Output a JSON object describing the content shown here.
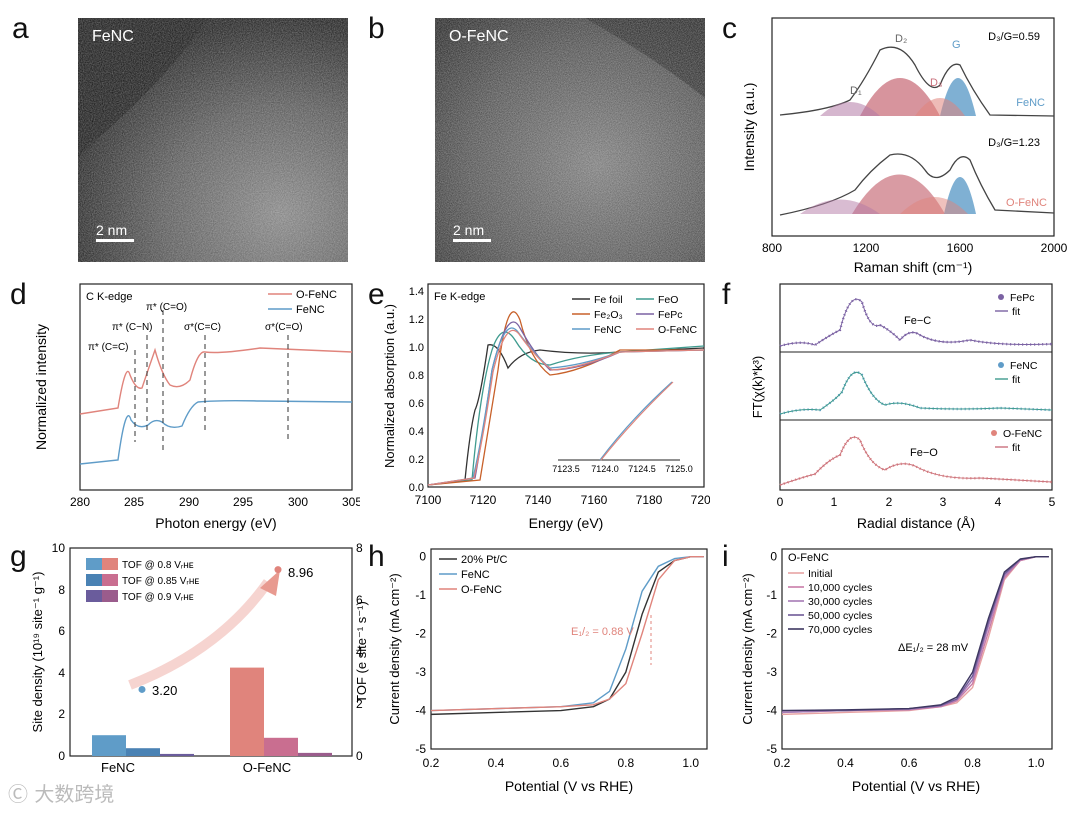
{
  "panels": {
    "a": {
      "letter": "a",
      "label": "FeNC",
      "scalebar": "2 nm"
    },
    "b": {
      "letter": "b",
      "label": "O-FeNC",
      "scalebar": "2 nm"
    },
    "c": {
      "letter": "c",
      "ylabel": "Intensity  (a.u.)",
      "xlabel": "Raman shift (cm⁻¹)",
      "xticks": [
        "800",
        "1200",
        "1600",
        "2000"
      ],
      "ratio_top": "D₃/G=0.59",
      "ratio_bottom": "D₃/G=1.23",
      "peak_labels": [
        "D₁",
        "D₂",
        "D₃",
        "G"
      ],
      "sample_top": "FeNC",
      "sample_bottom": "O-FeNC"
    },
    "d": {
      "letter": "d",
      "title": "C K-edge",
      "ylabel": "Normalized intensity",
      "xlabel": "Photon energy (eV)",
      "xticks": [
        "280",
        "285",
        "290",
        "295",
        "300",
        "305"
      ],
      "legend": [
        "O-FeNC",
        "FeNC"
      ],
      "annotations": [
        "π* (C=C)",
        "π* (C−N)",
        "π* (C=O)",
        "σ*(C=C)",
        "σ*(C=O)"
      ]
    },
    "e": {
      "letter": "e",
      "title": "Fe K-edge",
      "ylabel": "Normalized absorption (a.u.)",
      "xlabel": "Energy (eV)",
      "xticks": [
        "7100",
        "7120",
        "7140",
        "7160",
        "7180",
        "7200"
      ],
      "yticks": [
        "0.0",
        "0.2",
        "0.4",
        "0.6",
        "0.8",
        "1.0",
        "1.2",
        "1.4"
      ],
      "legend": [
        "Fe foil",
        "FeO",
        "Fe₂O₃",
        "FePc",
        "FeNC",
        "O-FeNC"
      ],
      "inset_xticks": [
        "7123.5",
        "7124.0",
        "7124.5",
        "7125.0"
      ]
    },
    "f": {
      "letter": "f",
      "ylabel": "FT(χ(k)*k³)",
      "xlabel": "Radial distance (Å)",
      "xticks": [
        "0",
        "1",
        "2",
        "3",
        "4",
        "5"
      ],
      "subplots": [
        {
          "sample": "FePc",
          "fit": "fit",
          "bond": "Fe−C"
        },
        {
          "sample": "FeNC",
          "fit": "fit",
          "bond": ""
        },
        {
          "sample": "O-FeNC",
          "fit": "fit",
          "bond": "Fe−O"
        }
      ]
    },
    "g": {
      "letter": "g",
      "ylabel": "Site density (10¹⁹ site⁻¹ g⁻¹)",
      "y2label": "TOF (e site⁻¹ s⁻¹)",
      "yticks": [
        "0",
        "2",
        "4",
        "6",
        "8",
        "10"
      ],
      "y2ticks": [
        "0",
        "2",
        "4",
        "6",
        "8"
      ],
      "legend": [
        "TOF @ 0.8 Vᵣʜᴇ",
        "TOF @ 0.85 Vᵣʜᴇ",
        "TOF @ 0.9 Vᵣʜᴇ"
      ],
      "point_labels": [
        "3.20",
        "8.96"
      ]
    },
    "h": {
      "letter": "h",
      "ylabel": "Current density (mA cm⁻²)",
      "xlabel": "Potential (V vs RHE)",
      "legend": [
        "20% Pt/C",
        "FeNC",
        "O-FeNC"
      ],
      "annotation": "E₁/₂ = 0.88 V"
    },
    "i": {
      "letter": "i",
      "ylabel": "Current density (mA cm⁻²)",
      "xlabel": "Potential (V vs RHE)",
      "title": "O-FeNC",
      "legend": [
        "Initial",
        "10,000 cycles",
        "30,000 cycles",
        "50,000 cycles",
        "70,000 cycles"
      ],
      "annotation": "ΔE₁/₂ = 28 mV"
    }
  },
  "lsv_xticks": [
    "0.2",
    "0.4",
    "0.6",
    "0.8",
    "1.0"
  ],
  "lsv_yticks": [
    "0",
    "-1",
    "-2",
    "-3",
    "-4",
    "-5"
  ],
  "watermark": "大数跨境",
  "colors": {
    "red": "#e0847c",
    "blue": "#5f9cc8",
    "purple": "#7b62a3",
    "dark": "#333333",
    "green": "#3f9b8f",
    "orange": "#c8612a"
  },
  "chart_data": [
    {
      "type": "bar",
      "panel": "g",
      "categories": [
        "FeNC",
        "O-FeNC"
      ],
      "series": [
        {
          "name": "TOF @ 0.8 V_RHE",
          "values": [
            0.8,
            3.4
          ]
        },
        {
          "name": "TOF @ 0.85 V_RHE",
          "values": [
            0.3,
            0.7
          ]
        },
        {
          "name": "TOF @ 0.9 V_RHE",
          "values": [
            0.08,
            0.12
          ]
        }
      ],
      "site_density": [
        3.2,
        8.96
      ],
      "ylim": [
        0,
        10
      ],
      "y2lim": [
        0,
        8
      ]
    },
    {
      "type": "line",
      "panel": "h",
      "x": [
        0.2,
        0.4,
        0.6,
        0.7,
        0.75,
        0.8,
        0.85,
        0.9,
        0.95,
        1.0,
        1.04
      ],
      "series": [
        {
          "name": "20% Pt/C",
          "values": [
            -4.1,
            -4.05,
            -4.0,
            -3.9,
            -3.7,
            -3.0,
            -1.5,
            -0.4,
            -0.1,
            0,
            0
          ]
        },
        {
          "name": "FeNC",
          "values": [
            -4.0,
            -3.95,
            -3.9,
            -3.8,
            -3.5,
            -2.4,
            -0.9,
            -0.25,
            -0.05,
            0,
            0
          ]
        },
        {
          "name": "O-FeNC",
          "values": [
            -4.0,
            -3.95,
            -3.9,
            -3.85,
            -3.7,
            -3.3,
            -2.0,
            -0.6,
            -0.1,
            0,
            0
          ]
        }
      ],
      "xlim": [
        0.2,
        1.05
      ],
      "ylim": [
        -5,
        0.2
      ]
    },
    {
      "type": "line",
      "panel": "i",
      "x": [
        0.2,
        0.4,
        0.6,
        0.7,
        0.75,
        0.8,
        0.85,
        0.9,
        0.95,
        1.0,
        1.04
      ],
      "series": [
        {
          "name": "Initial",
          "values": [
            -4.1,
            -4.05,
            -4.0,
            -3.9,
            -3.8,
            -3.4,
            -2.1,
            -0.6,
            -0.1,
            0,
            0
          ]
        },
        {
          "name": "10,000 cycles",
          "values": [
            -4.05,
            -4.0,
            -3.98,
            -3.9,
            -3.75,
            -3.3,
            -1.95,
            -0.55,
            -0.1,
            0,
            0
          ]
        },
        {
          "name": "30,000 cycles",
          "values": [
            -4.05,
            -4.0,
            -3.97,
            -3.88,
            -3.72,
            -3.2,
            -1.8,
            -0.5,
            -0.08,
            0,
            0
          ]
        },
        {
          "name": "50,000 cycles",
          "values": [
            -4.0,
            -4.0,
            -3.95,
            -3.87,
            -3.7,
            -3.1,
            -1.7,
            -0.45,
            -0.07,
            0,
            0
          ]
        },
        {
          "name": "70,000 cycles",
          "values": [
            -4.0,
            -3.98,
            -3.95,
            -3.85,
            -3.65,
            -3.0,
            -1.6,
            -0.4,
            -0.06,
            0,
            0
          ]
        }
      ],
      "xlim": [
        0.2,
        1.05
      ],
      "ylim": [
        -5,
        0.2
      ]
    }
  ]
}
